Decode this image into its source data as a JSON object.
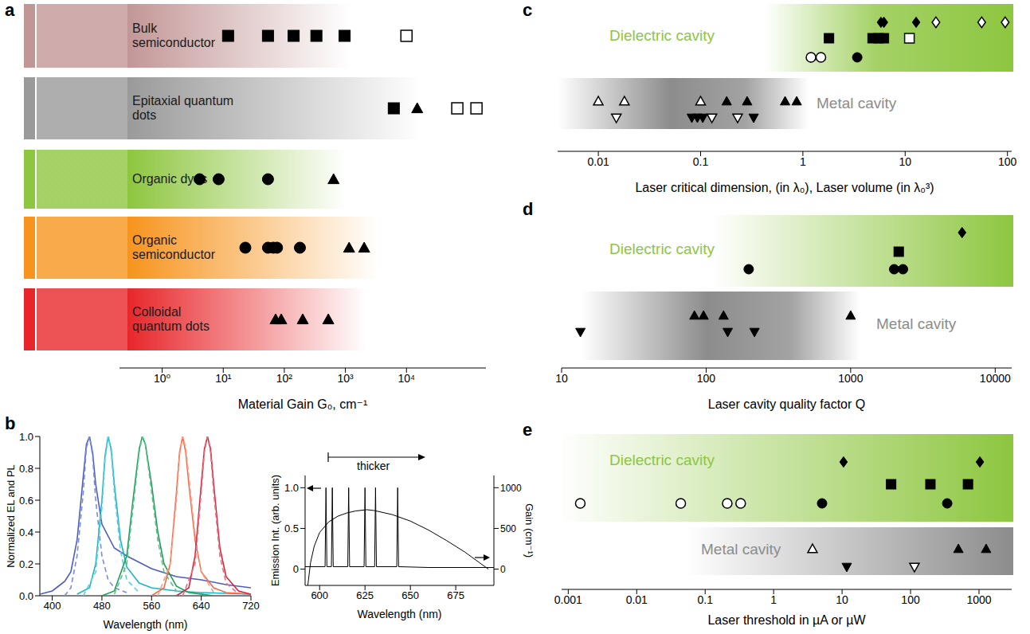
{
  "chart_data": [
    {
      "panel": "a",
      "type": "scatter",
      "xlabel": "Material Gain G₀, cm⁻¹",
      "log": "x",
      "xlim": [
        0.2,
        200000
      ],
      "xticks": [
        {
          "value": 1,
          "label": "10⁰"
        },
        {
          "value": 10,
          "label": "10¹"
        },
        {
          "value": 100,
          "label": "10²"
        },
        {
          "value": 1000,
          "label": "10³"
        },
        {
          "value": 10000,
          "label": "10⁴"
        }
      ],
      "tick_labels": "x",
      "groups": [
        {
          "name": "Bulk semiconductor",
          "color": "#c39696",
          "series": [
            {
              "marker": "square",
              "x": [
                12,
                54,
                142,
                335,
                970
              ]
            },
            {
              "marker": "square_open",
              "x": [
                10000
              ]
            }
          ]
        },
        {
          "name": "Epitaxial quantum dots",
          "color": "#9a9a9a",
          "series": [
            {
              "marker": "square",
              "x": [
                6200
              ]
            },
            {
              "marker": "triangle",
              "x": [
                15000
              ]
            },
            {
              "marker": "square_open",
              "x": [
                68000,
                140000
              ]
            }
          ]
        },
        {
          "name": "Organic dyes",
          "color": "#8dc63f",
          "series": [
            {
              "marker": "circle",
              "x": [
                4.1,
                8.4,
                54
              ]
            },
            {
              "marker": "triangle",
              "x": [
                640
              ]
            }
          ]
        },
        {
          "name": "Organic semiconductor",
          "color": "#f7941d",
          "series": [
            {
              "marker": "circle",
              "x": [
                23,
                54,
                66,
                76,
                180
              ]
            },
            {
              "marker": "triangle",
              "x": [
                1150,
                2030
              ]
            }
          ]
        },
        {
          "name": "Colloidal quantum dots",
          "color": "#e8262a",
          "series": [
            {
              "marker": "triangle",
              "x": [
                72,
                89,
                200,
                525
              ]
            }
          ]
        }
      ]
    },
    {
      "panel": "b",
      "type": "line",
      "xlabel": "Wavelength (nm)",
      "ylabel": "Normalized EL and PL",
      "xlim": [
        380,
        720
      ],
      "xticks": [
        400,
        480,
        560,
        640,
        720
      ],
      "ylim": [
        0,
        1
      ],
      "yticks": [
        {
          "value": 0,
          "label": "0.0"
        },
        0.2,
        0.4,
        0.6,
        0.8,
        {
          "value": 1,
          "label": "1.0"
        }
      ],
      "series": [
        {
          "color": "#4b5cc4",
          "line_style": "solid",
          "x": [
            380,
            400,
            410,
            420,
            430,
            440,
            450,
            455,
            460,
            465,
            470,
            480,
            500,
            520,
            560,
            600,
            640,
            680,
            720
          ],
          "values": [
            0.01,
            0.03,
            0.06,
            0.09,
            0.15,
            0.35,
            0.75,
            0.95,
            1.0,
            0.9,
            0.7,
            0.45,
            0.3,
            0.25,
            0.17,
            0.12,
            0.1,
            0.07,
            0.05
          ]
        },
        {
          "color": "#7b8be0",
          "line_style": "dashed",
          "x": [
            420,
            430,
            440,
            450,
            455,
            460,
            465,
            470,
            480,
            490,
            500,
            520
          ],
          "values": [
            0,
            0.05,
            0.25,
            0.65,
            0.93,
            1.0,
            0.88,
            0.6,
            0.25,
            0.1,
            0.05,
            0.02
          ]
        },
        {
          "color": "#1fb5c9",
          "line_style": "solid",
          "x": [
            440,
            460,
            470,
            480,
            485,
            490,
            495,
            500,
            510,
            520,
            540,
            560,
            600,
            640,
            720
          ],
          "values": [
            0.01,
            0.05,
            0.2,
            0.6,
            0.88,
            1.0,
            0.92,
            0.7,
            0.35,
            0.18,
            0.08,
            0.05,
            0.03,
            0.02,
            0.01
          ]
        },
        {
          "color": "#5fd0dd",
          "line_style": "dashed",
          "x": [
            450,
            470,
            480,
            485,
            490,
            495,
            500,
            510,
            520,
            540
          ],
          "values": [
            0,
            0.15,
            0.55,
            0.85,
            1.0,
            0.9,
            0.65,
            0.28,
            0.1,
            0.02
          ]
        },
        {
          "color": "#1e9e5a",
          "line_style": "solid",
          "x": [
            480,
            500,
            520,
            530,
            540,
            545,
            550,
            560,
            570,
            580,
            600,
            620,
            660
          ],
          "values": [
            0,
            0.03,
            0.25,
            0.6,
            0.92,
            1.0,
            0.95,
            0.7,
            0.4,
            0.2,
            0.06,
            0.02,
            0
          ]
        },
        {
          "color": "#5cc38a",
          "line_style": "dashed",
          "x": [
            500,
            520,
            530,
            540,
            545,
            550,
            560,
            570,
            580,
            600
          ],
          "values": [
            0.01,
            0.2,
            0.55,
            0.9,
            1.0,
            0.95,
            0.65,
            0.35,
            0.15,
            0.03
          ]
        },
        {
          "color": "#f26b4f",
          "line_style": "solid",
          "x": [
            560,
            580,
            590,
            600,
            605,
            610,
            615,
            620,
            630,
            640,
            660,
            680,
            720
          ],
          "values": [
            0,
            0.05,
            0.2,
            0.65,
            0.9,
            1.0,
            0.9,
            0.7,
            0.35,
            0.15,
            0.05,
            0.02,
            0.01
          ]
        },
        {
          "color": "#f6a07f",
          "line_style": "dashed",
          "x": [
            570,
            590,
            600,
            605,
            610,
            615,
            620,
            630,
            640,
            660
          ],
          "values": [
            0,
            0.2,
            0.6,
            0.88,
            1.0,
            0.93,
            0.75,
            0.38,
            0.15,
            0.02
          ]
        },
        {
          "color": "#d7263d",
          "line_style": "solid",
          "x": [
            600,
            620,
            630,
            640,
            645,
            650,
            655,
            660,
            670,
            680,
            700,
            720
          ],
          "values": [
            0,
            0.05,
            0.25,
            0.7,
            0.92,
            1.0,
            0.92,
            0.7,
            0.3,
            0.12,
            0.03,
            0.01
          ]
        },
        {
          "color": "#e8707f",
          "line_style": "dashed",
          "x": [
            610,
            630,
            640,
            645,
            650,
            655,
            660,
            670,
            680,
            700
          ],
          "values": [
            0,
            0.2,
            0.65,
            0.9,
            1.0,
            0.9,
            0.65,
            0.25,
            0.08,
            0.01
          ]
        }
      ]
    },
    {
      "type": "line",
      "xlabel": "Wavelength (nm)",
      "ylabel": "Emission Int. (arb. units)",
      "y2label": "Gain (cm⁻¹)",
      "annotations": [
        "thicker"
      ],
      "xlim": [
        592,
        696
      ],
      "xticks": [
        600,
        625,
        650,
        675
      ],
      "ylim": [
        -0.2,
        1.15
      ],
      "yticks": [
        0,
        0.5,
        {
          "value": 1,
          "label": "1.0"
        }
      ],
      "y2lim": [
        -200,
        1150
      ],
      "y2ticks": [
        0,
        500,
        1000
      ],
      "series": [
        {
          "color": "#000000",
          "line_style": "solid",
          "x": [
            592,
            603,
            603.5,
            604,
            606.5,
            607,
            607.5,
            615.5,
            616,
            616.5,
            624.5,
            625,
            625.5,
            630.3,
            630.8,
            631.3,
            642.5,
            643,
            643.5,
            660,
            696
          ],
          "values": [
            0.03,
            0.03,
            1,
            0.03,
            0.03,
            1,
            0.03,
            0.03,
            1,
            0.03,
            0.03,
            1,
            0.03,
            0.03,
            1,
            0.03,
            0.03,
            1,
            0.03,
            0.02,
            0.02
          ]
        },
        {
          "color": "#000000",
          "line_style": "solid",
          "axis": "y2",
          "x": [
            593.5,
            595,
            597,
            600,
            605,
            610,
            615,
            620,
            626,
            630,
            640,
            650,
            660,
            670,
            680,
            688,
            693
          ],
          "values": [
            -200,
            80,
            280,
            450,
            580,
            650,
            690,
            715,
            730,
            720,
            670,
            590,
            480,
            350,
            210,
            80,
            0
          ]
        }
      ]
    },
    {
      "panel": "c",
      "type": "scatter",
      "xlabel": "Laser critical dimension, (in λ₀), Laser volume (in λ₀³)",
      "log": "x",
      "xlim": [
        0.004,
        110
      ],
      "xticks": [
        0.01,
        0.1,
        1,
        10,
        100
      ],
      "tick_labels": "x",
      "groups": [
        {
          "name": "Dielectric cavity",
          "color": "#8dc63f",
          "series": [
            {
              "marker": "diamond",
              "x": [
                5.8,
                6.2,
                12.8
              ]
            },
            {
              "marker": "diamond_open",
              "x": [
                20,
                56,
                95
              ]
            },
            {
              "marker": "square",
              "x": [
                1.8,
                4.8,
                5.5,
                6.2
              ]
            },
            {
              "marker": "square_open",
              "x": [
                11
              ]
            },
            {
              "marker": "circle_open",
              "x": [
                1.2,
                1.5
              ]
            },
            {
              "marker": "circle",
              "x": [
                3.4
              ]
            }
          ]
        },
        {
          "name": "Metal cavity",
          "color": "#8c8c8c",
          "series": [
            {
              "marker": "triangle_open",
              "x": [
                0.01,
                0.018,
                0.1
              ]
            },
            {
              "marker": "triangle",
              "x": [
                0.18,
                0.285,
                0.67,
                0.87
              ]
            },
            {
              "marker": "triangle_down_open",
              "x": [
                0.015,
                0.129,
                0.23
              ]
            },
            {
              "marker": "triangle_down",
              "x": [
                0.082,
                0.093,
                0.105,
                0.33
              ]
            }
          ]
        }
      ]
    },
    {
      "panel": "d",
      "type": "scatter",
      "xlabel": "Laser cavity quality factor Q",
      "log": "x",
      "xlim": [
        10,
        13000
      ],
      "xticks": [
        10,
        100,
        1000,
        10000
      ],
      "tick_labels": "x",
      "groups": [
        {
          "name": "Dielectric cavity",
          "color": "#8dc63f",
          "series": [
            {
              "marker": "diamond",
              "x": [
                5900
              ]
            },
            {
              "marker": "square",
              "x": [
                2150
              ]
            },
            {
              "marker": "circle",
              "x": [
                197,
                2000,
                2300
              ]
            }
          ]
        },
        {
          "name": "Metal cavity",
          "color": "#8c8c8c",
          "series": [
            {
              "marker": "triangle",
              "x": [
                83,
                96,
                132,
                1000
              ]
            },
            {
              "marker": "triangle_down",
              "x": [
                13.5,
                141,
                216
              ]
            }
          ]
        }
      ]
    },
    {
      "panel": "e",
      "type": "scatter",
      "xlabel": "Laser threshold in µA or µW",
      "log": "x",
      "xlim": [
        0.0008,
        3000
      ],
      "xticks": [
        0.001,
        0.01,
        0.1,
        1,
        10,
        100,
        1000
      ],
      "tick_labels": "x",
      "groups": [
        {
          "name": "Dielectric cavity",
          "color": "#8dc63f",
          "series": [
            {
              "marker": "diamond",
              "x": [
                10.5,
                1030
              ]
            },
            {
              "marker": "square",
              "x": [
                52,
                195,
                690
              ]
            },
            {
              "marker": "circle_open",
              "x": [
                0.0015,
                0.044,
                0.21,
                0.33
              ]
            },
            {
              "marker": "circle",
              "x": [
                5.1,
                343
              ]
            }
          ]
        },
        {
          "name": "Metal cavity",
          "color": "#8c8c8c",
          "series": [
            {
              "marker": "triangle_open",
              "x": [
                3.7
              ]
            },
            {
              "marker": "triangle",
              "x": [
                500,
                1270
              ]
            },
            {
              "marker": "triangle_down",
              "x": [
                11.7
              ]
            },
            {
              "marker": "triangle_down_open",
              "x": [
                114
              ]
            }
          ]
        }
      ]
    }
  ]
}
